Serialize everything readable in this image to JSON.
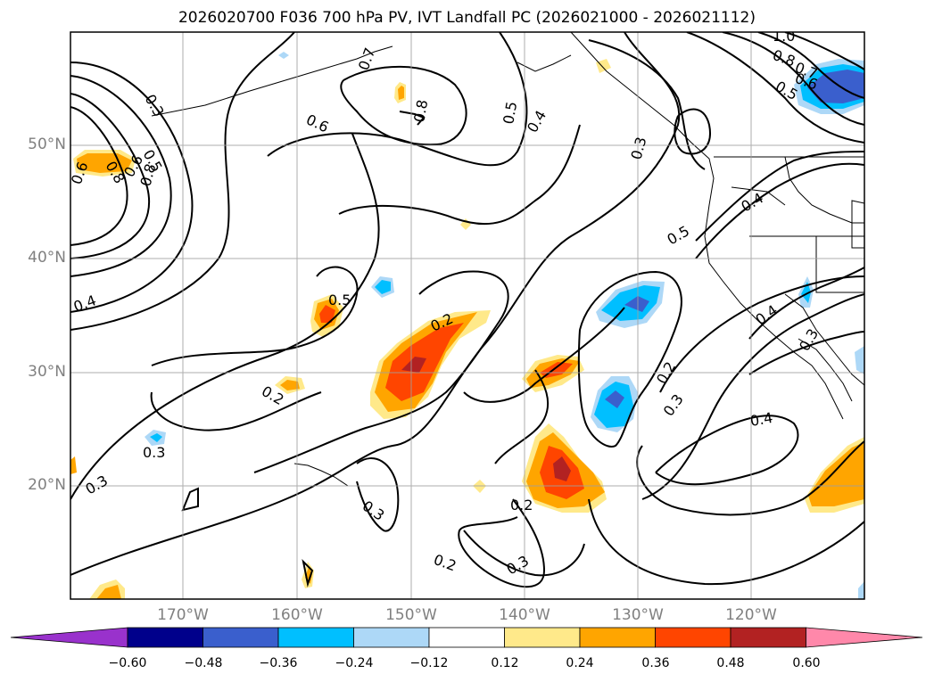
{
  "title": "2026020700 F036 700 hPa PV, IVT Landfall PC (2026021000 - 2026021112)",
  "lat_labels": [
    "50°N",
    "40°N",
    "30°N",
    "20°N"
  ],
  "lon_labels": [
    "170°W",
    "160°W",
    "150°W",
    "140°W",
    "130°W",
    "120°W"
  ],
  "colorbar": {
    "levels": [
      "−0.60",
      "−0.48",
      "−0.36",
      "−0.24",
      "−0.12",
      "0.12",
      "0.24",
      "0.36",
      "0.48",
      "0.60"
    ],
    "colors": [
      "#9932cc",
      "#00008b",
      "#3a5fcd",
      "#00bfff",
      "#add8f7",
      "#ffffff",
      "#ffe98a",
      "#ffa500",
      "#ff4500",
      "#b22222",
      "#ff88aa"
    ]
  },
  "contour_labels": [
    "1.0",
    "0.8",
    "0.7",
    "0.6",
    "0.5",
    "0.3",
    "0.8",
    "0.6",
    "0.5",
    "0.8",
    "0.6",
    "0.7",
    "0.8",
    "0.5",
    "0.4",
    "0.3",
    "0.4",
    "0.5",
    "0.4",
    "0.6",
    "0.5",
    "0.2",
    "0.2",
    "0.3",
    "0.3",
    "0.2",
    "0.4",
    "0.3",
    "0.3",
    "0.2",
    "0.3",
    "0.2",
    "0.4",
    "0.3"
  ]
}
